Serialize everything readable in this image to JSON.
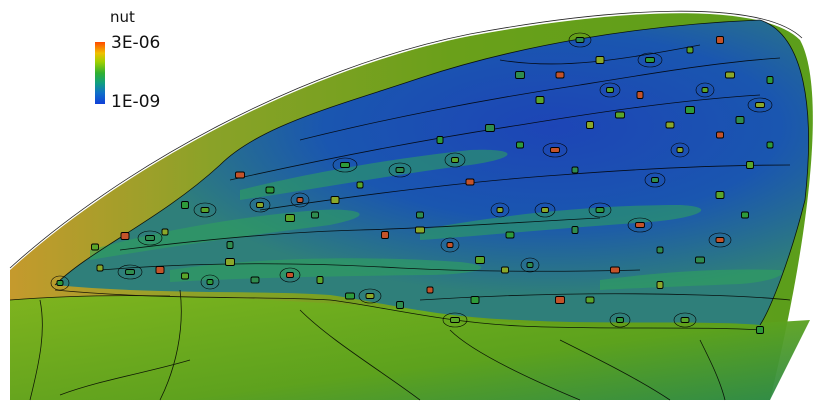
{
  "legend": {
    "title": "nut",
    "max_label": "3E-06",
    "min_label": "1E-09",
    "colormap": [
      "#ff4a00",
      "#f0c000",
      "#a0d000",
      "#30b030",
      "#10a080",
      "#1070c8",
      "#1040d8"
    ]
  },
  "scene": {
    "background": "#ffffff",
    "surface_low_color": "#1a4fa8",
    "surface_mid_color": "#2f7f7a",
    "surface_high_color": "#6fa61a",
    "edge_color": "#c59a2d",
    "contour_color": "#000000"
  }
}
